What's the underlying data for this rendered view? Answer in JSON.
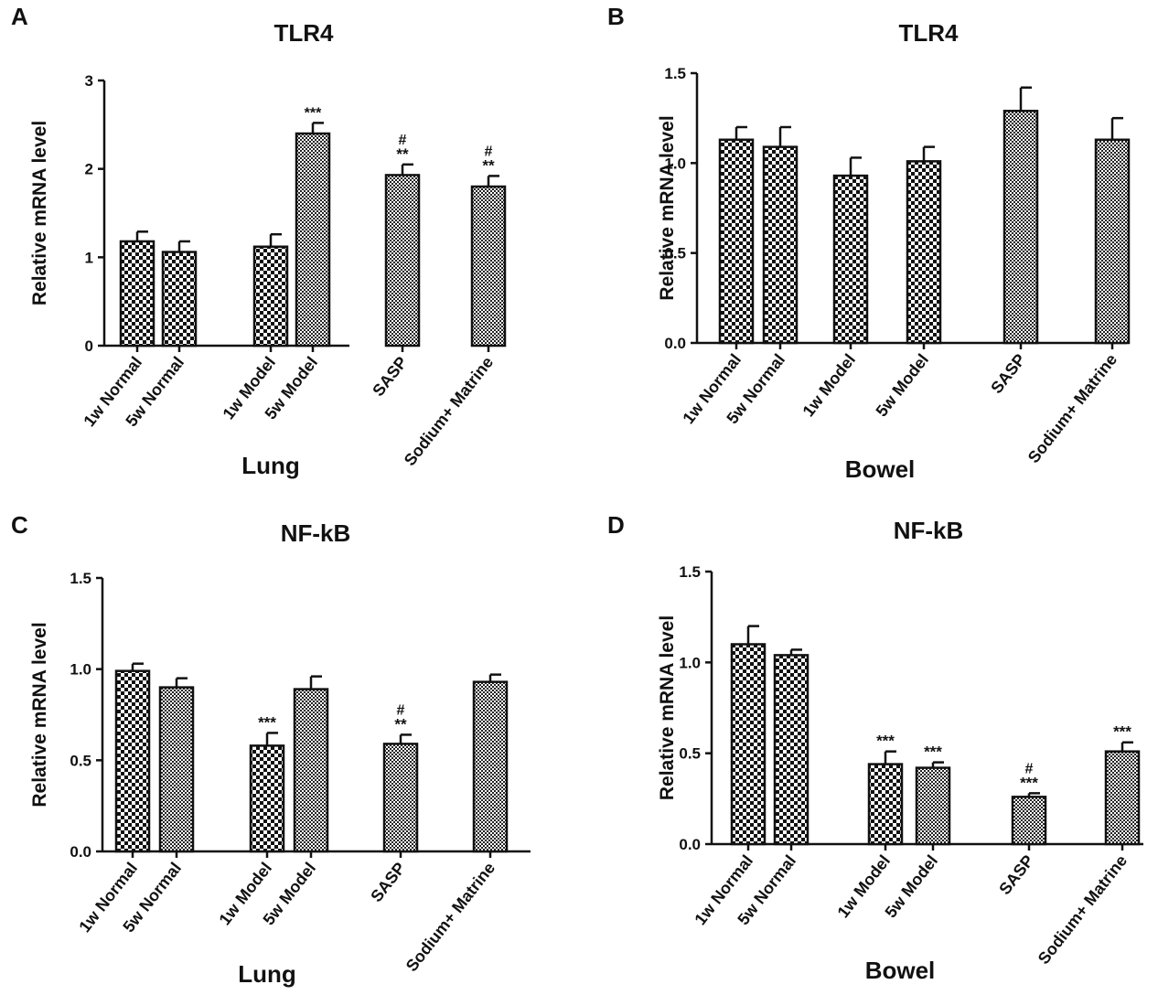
{
  "chart_data": [
    {
      "panel": "A",
      "type": "bar",
      "title": "TLR4",
      "xlabel": "Lung",
      "ylabel": "Relative mRNA level",
      "ylim": [
        0,
        3
      ],
      "yticks": [
        "0",
        "1",
        "2",
        "3"
      ],
      "categories": [
        "1w Normal",
        "5w Normal",
        "1w Model",
        "5w Model",
        "SASP",
        "Sodium+ Matrine"
      ],
      "values": [
        1.18,
        1.06,
        1.12,
        2.4,
        1.93,
        1.8
      ],
      "errors": [
        0.11,
        0.12,
        0.14,
        0.12,
        0.12,
        0.12
      ],
      "patterns": [
        "checker",
        "checker",
        "checker",
        "fine",
        "fine",
        "fine"
      ],
      "annotations": [
        [
          "",
          ""
        ],
        [
          "",
          ""
        ],
        [
          "",
          ""
        ],
        [
          "",
          "***"
        ],
        [
          "**",
          "#"
        ],
        [
          "**",
          "#"
        ]
      ]
    },
    {
      "panel": "B",
      "type": "bar",
      "title": "TLR4",
      "xlabel": "Bowel",
      "ylabel": "Relative mRNA level",
      "ylim": [
        0,
        1.5
      ],
      "yticks": [
        "0.0",
        "0.5",
        "1.0",
        "1.5"
      ],
      "categories": [
        "1w Normal",
        "5w Normal",
        "1w Model",
        "5w Model",
        "SASP",
        "Sodium+ Matrine"
      ],
      "values": [
        1.13,
        1.09,
        0.93,
        1.01,
        1.29,
        1.13
      ],
      "errors": [
        0.07,
        0.11,
        0.1,
        0.08,
        0.13,
        0.12
      ],
      "patterns": [
        "checker",
        "checker",
        "checker",
        "checker",
        "fine",
        "fine"
      ],
      "annotations": [
        [
          "",
          ""
        ],
        [
          "",
          ""
        ],
        [
          "",
          ""
        ],
        [
          "",
          ""
        ],
        [
          "",
          ""
        ],
        [
          "",
          ""
        ]
      ]
    },
    {
      "panel": "C",
      "type": "bar",
      "title": "NF-kB",
      "xlabel": "Lung",
      "ylabel": "Relative mRNA level",
      "ylim": [
        0,
        1.5
      ],
      "yticks": [
        "0.0",
        "0.5",
        "1.0",
        "1.5"
      ],
      "categories": [
        "1w Normal",
        "5w Normal",
        "1w Model",
        "5w Model",
        "SASP",
        "Sodium+ Matrine"
      ],
      "values": [
        0.99,
        0.9,
        0.58,
        0.89,
        0.59,
        0.93
      ],
      "errors": [
        0.04,
        0.05,
        0.07,
        0.07,
        0.05,
        0.04
      ],
      "patterns": [
        "checker",
        "fine",
        "checker",
        "fine",
        "fine",
        "fine"
      ],
      "annotations": [
        [
          "",
          ""
        ],
        [
          "",
          ""
        ],
        [
          "***",
          ""
        ],
        [
          "",
          ""
        ],
        [
          "**",
          "#"
        ],
        [
          "",
          ""
        ]
      ]
    },
    {
      "panel": "D",
      "type": "bar",
      "title": "NF-kB",
      "xlabel": "Bowel",
      "ylabel": "Relative mRNA level",
      "ylim": [
        0,
        1.5
      ],
      "yticks": [
        "0.0",
        "0.5",
        "1.0",
        "1.5"
      ],
      "categories": [
        "1w Normal",
        "5w Normal",
        "1w Model",
        "5w Model",
        "SASP",
        "Sodium+ Matrine"
      ],
      "values": [
        1.1,
        1.04,
        0.44,
        0.42,
        0.26,
        0.51
      ],
      "errors": [
        0.1,
        0.03,
        0.07,
        0.03,
        0.02,
        0.05
      ],
      "patterns": [
        "checker",
        "checker",
        "checker",
        "fine",
        "fine",
        "fine"
      ],
      "annotations": [
        [
          "",
          ""
        ],
        [
          "",
          ""
        ],
        [
          "***",
          ""
        ],
        [
          "***",
          ""
        ],
        [
          "***",
          "#"
        ],
        [
          "***",
          ""
        ]
      ]
    }
  ]
}
